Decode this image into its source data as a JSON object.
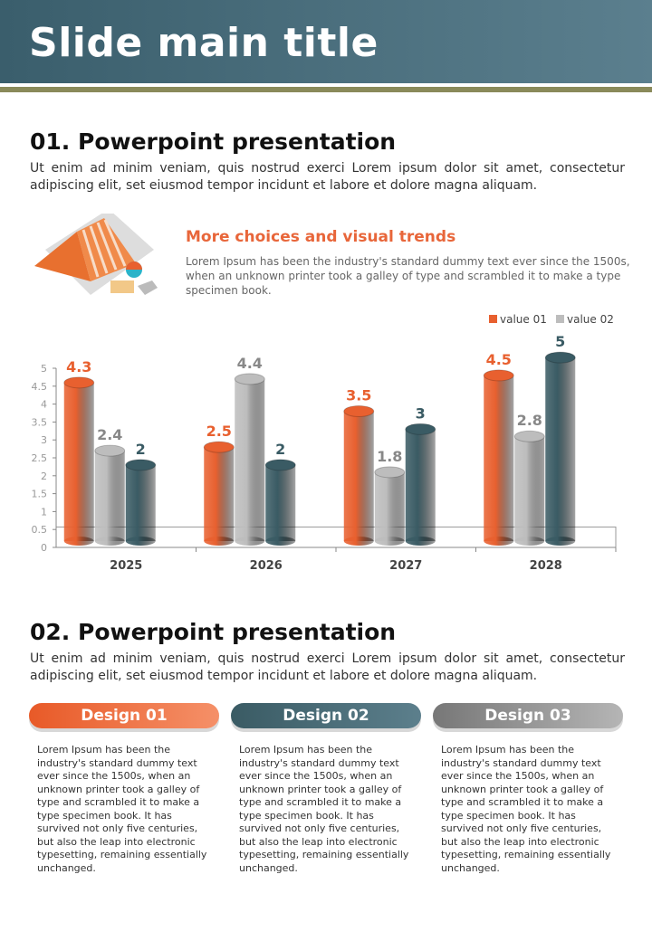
{
  "header": {
    "title": "Slide main title"
  },
  "section1": {
    "title": "01. Powerpoint presentation",
    "text": "Ut enim ad minim veniam, quis nostrud exerci  Lorem ipsum dolor sit amet, consectetur adipiscing elit, set eiusmod tempor incidunt et labore et dolore magna aliquam."
  },
  "feature": {
    "title": "More choices and visual trends",
    "text": "Lorem Ipsum has been the industry's standard dummy text ever since the 1500s, when an unknown printer took a galley of type and scrambled it to make a type specimen book."
  },
  "chart_data": {
    "type": "bar",
    "categories": [
      "2025",
      "2026",
      "2027",
      "2028"
    ],
    "series": [
      {
        "name": "value 01",
        "values": [
          4.3,
          2.5,
          3.5,
          4.5
        ],
        "color": "#e8602f"
      },
      {
        "name": "value 02",
        "values": [
          2.4,
          4.4,
          1.8,
          2.8
        ],
        "color": "#bdbdbd"
      },
      {
        "name": "",
        "values": [
          2,
          2,
          3,
          5
        ],
        "color": "#3a5b64"
      }
    ],
    "yticks": [
      "0",
      "0.5",
      "1",
      "1.5",
      "2",
      "2.5",
      "3",
      "3.5",
      "4",
      "4.5",
      "5"
    ],
    "ylim": [
      0,
      5
    ],
    "legend": "top-right"
  },
  "section2": {
    "title": "02. Powerpoint presentation",
    "text": "Ut enim ad minim veniam, quis nostrud exerci  Lorem ipsum dolor sit amet, consectetur adipiscing elit, set eiusmod tempor incidunt et labore et dolore magna aliquam."
  },
  "cards": [
    {
      "title": "Design 01",
      "text": "Lorem Ipsum has been the industry's standard dummy text ever since the 1500s, when an unknown printer took a galley of type and scrambled it to make a type specimen book. It has survived not only five centuries, but also the leap into electronic typesetting, remaining essentially unchanged."
    },
    {
      "title": "Design 02",
      "text": "Lorem Ipsum has been the industry's standard dummy text ever since the 1500s, when an unknown printer took a galley of type and scrambled it to make a type specimen book. It has survived not only five centuries, but also the leap into electronic typesetting, remaining essentially unchanged."
    },
    {
      "title": "Design 03",
      "text": "Lorem Ipsum has been the industry's standard dummy text ever since the 1500s, when an unknown printer took a galley of type and scrambled it to make a type specimen book. It has survived not only five centuries, but also the leap into electronic typesetting, remaining essentially unchanged."
    }
  ]
}
